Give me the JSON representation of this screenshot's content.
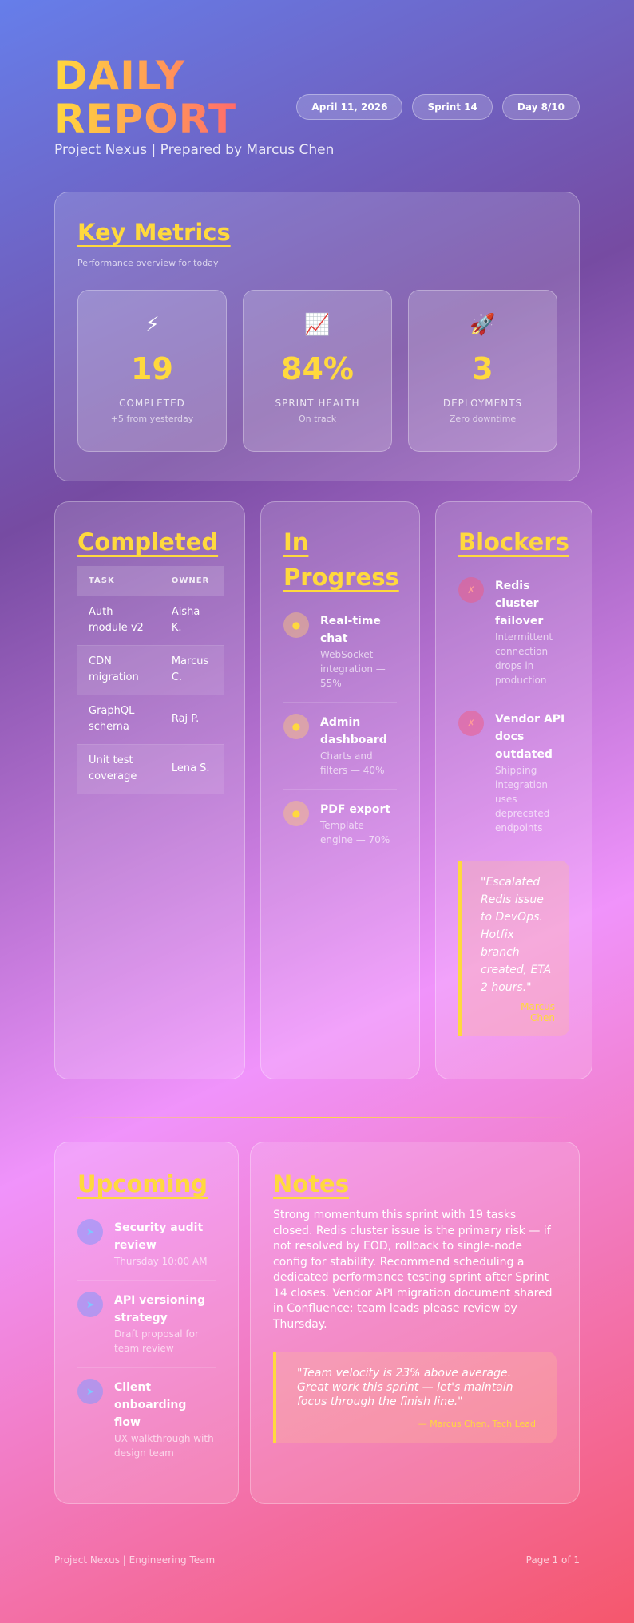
{
  "header": {
    "title_line1": "DAILY",
    "title_line2": "REPORT",
    "subtitle": "Project Nexus | Prepared by Marcus Chen",
    "pills": [
      "April 11, 2026",
      "Sprint 14",
      "Day 8/10"
    ]
  },
  "metrics": {
    "title": "Key Metrics",
    "subtitle": "Performance overview for today",
    "items": [
      {
        "icon": "⚡",
        "icon_name": "lightning-icon",
        "value": "19",
        "label": "COMPLETED",
        "note": "+5 from yesterday"
      },
      {
        "icon": "📈",
        "icon_name": "chart-increasing-icon",
        "value": "84%",
        "label": "SPRINT HEALTH",
        "note": "On track"
      },
      {
        "icon": "🚀",
        "icon_name": "rocket-icon",
        "value": "3",
        "label": "DEPLOYMENTS",
        "note": "Zero downtime"
      }
    ]
  },
  "completed": {
    "title": "Completed",
    "columns": [
      "TASK",
      "OWNER"
    ],
    "rows": [
      [
        "Auth module v2",
        "Aisha K."
      ],
      [
        "CDN migration",
        "Marcus C."
      ],
      [
        "GraphQL schema",
        "Raj P."
      ],
      [
        "Unit test coverage",
        "Lena S."
      ]
    ]
  },
  "in_progress": {
    "title": "In Progress",
    "items": [
      {
        "title": "Real-time chat",
        "desc": "WebSocket integration — 55%",
        "percent": 55
      },
      {
        "title": "Admin dashboard",
        "desc": "Charts and filters — 40%",
        "percent": 40
      },
      {
        "title": "PDF export",
        "desc": "Template engine — 70%",
        "percent": 70
      }
    ]
  },
  "blockers": {
    "title": "Blockers",
    "items": [
      {
        "title": "Redis cluster failover",
        "desc": "Intermittent connection drops in production"
      },
      {
        "title": "Vendor API docs outdated",
        "desc": "Shipping integration uses deprecated endpoints"
      }
    ],
    "quote": "\"Escalated Redis issue to DevOps. Hotfix branch created, ETA 2 hours.\"",
    "quote_author": "— Marcus Chen"
  },
  "upcoming": {
    "title": "Upcoming",
    "items": [
      {
        "title": "Security audit review",
        "desc": "Thursday 10:00 AM"
      },
      {
        "title": "API versioning strategy",
        "desc": "Draft proposal for team review"
      },
      {
        "title": "Client onboarding flow",
        "desc": "UX walkthrough with design team"
      }
    ]
  },
  "notes": {
    "title": "Notes",
    "body": "Strong momentum this sprint with 19 tasks closed. Redis cluster issue is the primary risk — if not resolved by EOD, rollback to single-node config for stability. Recommend scheduling a dedicated performance testing sprint after Sprint 14 closes. Vendor API migration document shared in Confluence; team leads please review by Thursday.",
    "quote": "\"Team velocity is 23% above average. Great work this sprint — let's maintain focus through the finish line.\"",
    "quote_author": "— Marcus Chen, Tech Lead"
  },
  "footer": {
    "left": "Project Nexus | Engineering Team",
    "right": "Page 1 of 1"
  },
  "colors": {
    "accent": "#ffd93d",
    "gradient": [
      "#667eea",
      "#764ba2",
      "#f093fb",
      "#f5576c"
    ]
  }
}
